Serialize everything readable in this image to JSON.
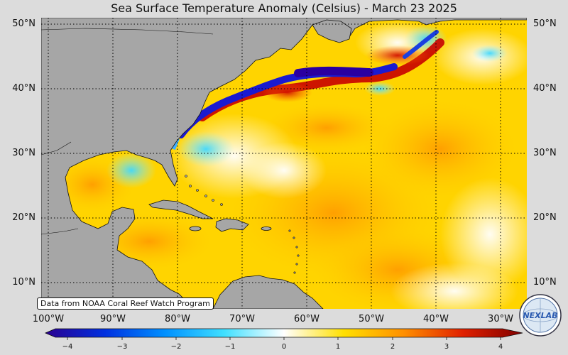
{
  "title": "Sea Surface Temperature Anomaly (Celsius) - March 23 2025",
  "credit": "Data from NOAA Coral Reef Watch Program",
  "logo_text": "NEXLAB",
  "lat_labels": [
    "50°N",
    "40°N",
    "30°N",
    "20°N",
    "10°N"
  ],
  "lon_labels": [
    "100°W",
    "90°W",
    "80°W",
    "70°W",
    "60°W",
    "50°W",
    "40°W",
    "30°W"
  ],
  "colorbar": {
    "ticks": [
      "−4",
      "−3",
      "−2",
      "−1",
      "0",
      "1",
      "2",
      "3",
      "4"
    ],
    "min": -4,
    "max": 4,
    "colors": [
      "#2a0090",
      "#0030e0",
      "#0090ff",
      "#40e0ff",
      "#ffffff",
      "#ffe000",
      "#ff9000",
      "#e02000",
      "#800000"
    ]
  },
  "colors": {
    "land": "#a6a6a6",
    "background": "#dcdcdc",
    "grid": "#000000"
  }
}
